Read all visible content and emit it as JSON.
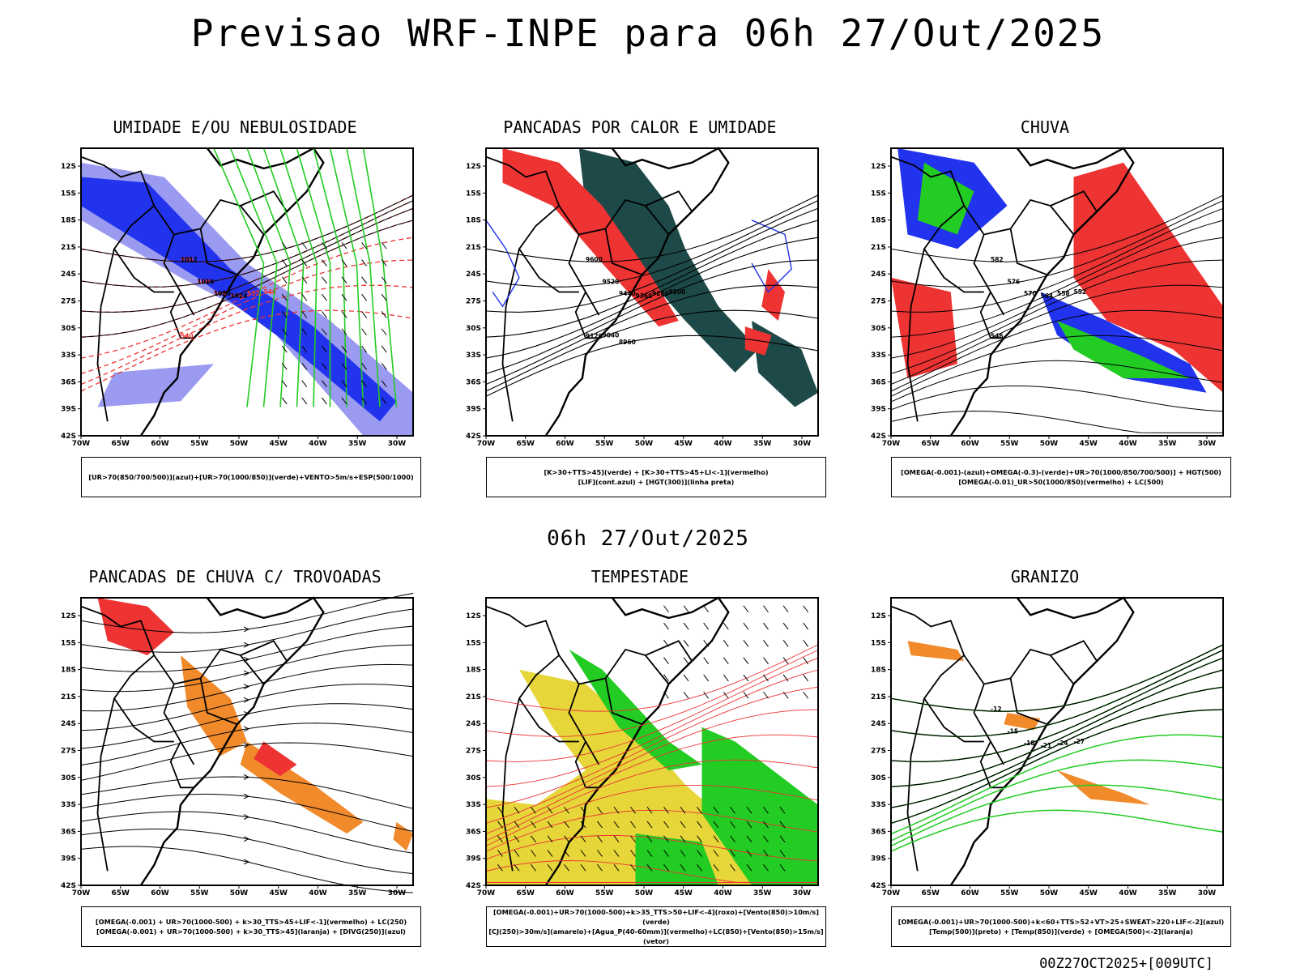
{
  "title": "Previsao WRF-INPE  para 06h 27/Out/2025",
  "middle_title": "06h 27/Out/2025",
  "footer": "00Z27OCT2025+[009UTC]",
  "axes": {
    "lat_labels": [
      "12S",
      "15S",
      "18S",
      "21S",
      "24S",
      "27S",
      "30S",
      "33S",
      "36S",
      "39S",
      "42S"
    ],
    "lon_labels": [
      "70W",
      "65W",
      "60W",
      "55W",
      "50W",
      "45W",
      "40W",
      "35W",
      "30W"
    ]
  },
  "colors": {
    "blue": "#2233ee",
    "light_blue": "#9a9af0",
    "green": "#22cc22",
    "red": "#ee3333",
    "dark_teal": "#1d4a48",
    "orange": "#f08a2a",
    "yellow": "#e6d63a"
  },
  "panels": [
    {
      "title": "UMIDADE E/OU NEBULOSIDADE",
      "legend": [
        "[UR>70(850/700/500)](azul)+[UR>70(1000/850)](verde)+VENTO>5m/s+ESP(500/1000)"
      ]
    },
    {
      "title": "PANCADAS POR CALOR E UMIDADE",
      "legend": [
        "[K>30+TTS>45](verde) + [K>30+TTS>45+LI<-1](vermelho)",
        "[LIF](cont.azul) + [HGT(300)](linha preta)"
      ]
    },
    {
      "title": "CHUVA",
      "legend": [
        "[OMEGA(-0.001)-(azul)+OMEGA(-0.3)-(verde)+UR>70(1000/850/700/500)] + HGT(500)",
        "[OMEGA(-0.01)_UR>50(1000/850)(vermelho) + LC(500)"
      ]
    },
    {
      "title": "PANCADAS DE CHUVA C/ TROVOADAS",
      "legend": [
        "[OMEGA(-0.001) + UR>70(1000-500) + k>30_TTS>45+LIF<-1](vermelho) + LC(250)",
        "[OMEGA(-0.001) + UR>70(1000-500) + k>30_TTS>45](laranja) + [DIVG(250)](azul)"
      ]
    },
    {
      "title": "TEMPESTADE",
      "legend": [
        "[OMEGA(-0.001)+UR>70(1000-500)+k>35_TTS>50+LIF<-4](roxo)+[Vento(850)>10m/s](verde)",
        "[CJ(250)>30m/s](amarelo)+[Agua_P(40-60mm)](vermelho)+LC(850)+[Vento(850)>15m/s](vetor)"
      ]
    },
    {
      "title": "GRANIZO",
      "legend": [
        "[OMEGA(-0.001)+UR>70(1000-500)+k<60+TTS>52+VT>25+SWEAT>220+LIF<-2](azul)",
        "[Temp(500)](preto) + [Temp(850)](verde) + [OMEGA(500)<-2](laranja)"
      ]
    }
  ],
  "contour_labels": {
    "p1": [
      "1012",
      "1016",
      "1020",
      "1024",
      "576",
      "570",
      "564",
      "558",
      "552",
      "546",
      "540"
    ],
    "p2": [
      "9600",
      "9520",
      "9440",
      "9360",
      "9280",
      "9200",
      "9120",
      "9040",
      "8960"
    ],
    "p3": [
      "582",
      "576",
      "570",
      "564",
      "558",
      "552",
      "546"
    ],
    "p6": [
      "-12",
      "-15",
      "-18",
      "-21",
      "-24",
      "-27"
    ]
  }
}
